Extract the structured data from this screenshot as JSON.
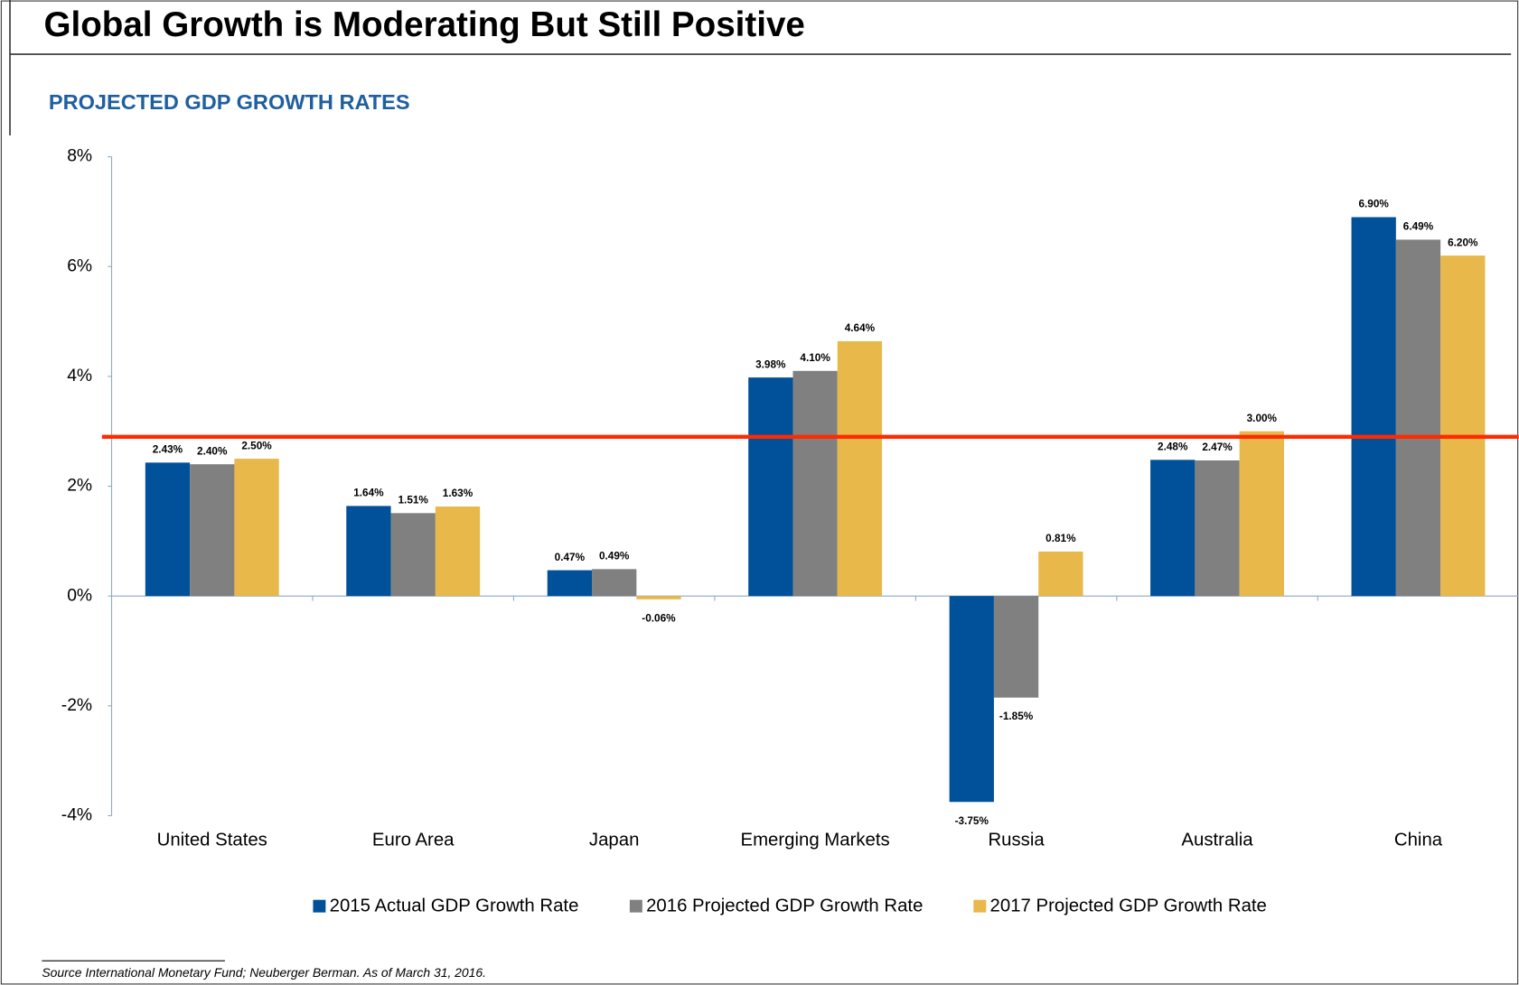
{
  "chart_data": {
    "type": "bar",
    "title": "Global Growth is Moderating But Still Positive",
    "subtitle": "PROJECTED GDP GROWTH RATES",
    "source": "Source International Monetary Fund; Neuberger Berman. As of March 31, 2016.",
    "categories": [
      "United States",
      "Euro Area",
      "Japan",
      "Emerging Markets",
      "Russia",
      "Australia",
      "China"
    ],
    "series": [
      {
        "name": "2015 Actual GDP Growth Rate",
        "color": "#00519a",
        "values": [
          2.43,
          1.64,
          0.47,
          3.98,
          -3.75,
          2.48,
          6.9
        ],
        "value_labels": [
          "2.43%",
          "1.64%",
          "0.47%",
          "3.98%",
          "-3.75%",
          "2.48%",
          "6.90%"
        ]
      },
      {
        "name": "2016 Projected GDP Growth Rate",
        "color": "#808080",
        "values": [
          2.4,
          1.51,
          0.49,
          4.1,
          -1.85,
          2.47,
          6.49
        ],
        "value_labels": [
          "2.40%",
          "1.51%",
          "0.49%",
          "4.10%",
          "-1.85%",
          "2.47%",
          "6.49%"
        ]
      },
      {
        "name": "2017 Projected GDP Growth Rate",
        "color": "#e8b84b",
        "values": [
          2.5,
          1.63,
          -0.06,
          4.64,
          0.81,
          3.0,
          6.2
        ],
        "value_labels": [
          "2.50%",
          "1.63%",
          "-0.06%",
          "4.64%",
          "0.81%",
          "3.00%",
          "6.20%"
        ]
      }
    ],
    "ylim": [
      -4,
      8
    ],
    "yticks": [
      {
        "value": -4,
        "label": "-4%"
      },
      {
        "value": -2,
        "label": "-2%"
      },
      {
        "value": 0,
        "label": "0%"
      },
      {
        "value": 2,
        "label": "2%"
      },
      {
        "value": 4,
        "label": "4%"
      },
      {
        "value": 6,
        "label": "6%"
      },
      {
        "value": 8,
        "label": "8%"
      }
    ],
    "reference_line": {
      "value": 2.9,
      "color": "#ff2a00"
    },
    "legend": "bottom"
  }
}
